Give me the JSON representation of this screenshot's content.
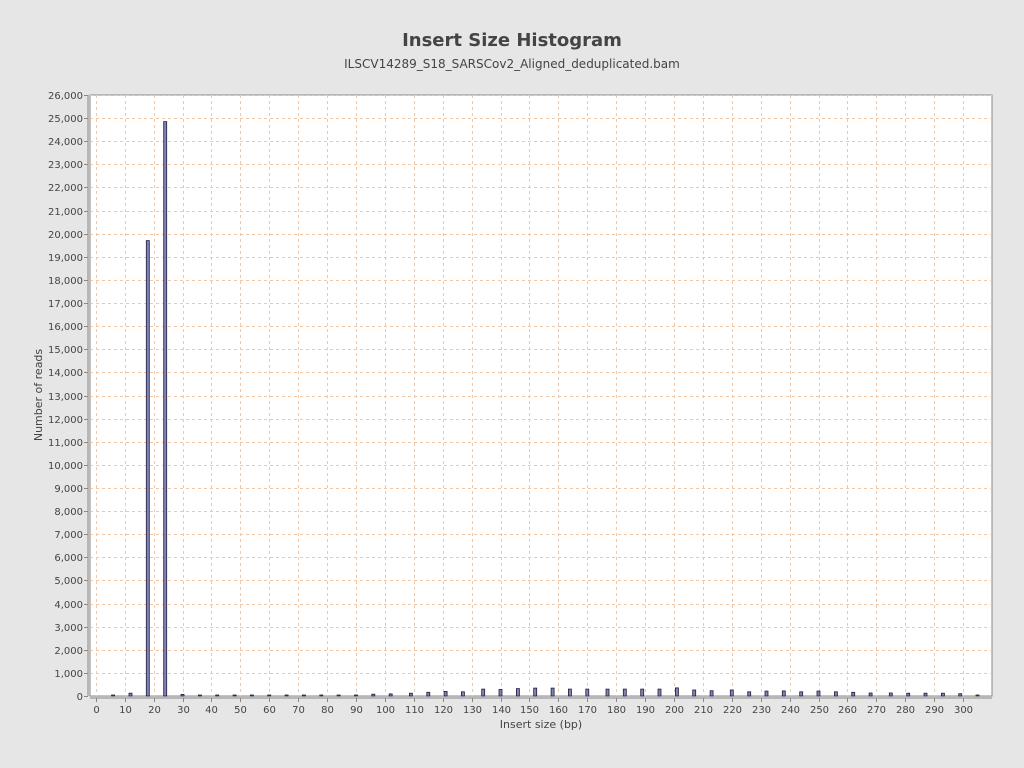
{
  "chart_data": {
    "type": "bar",
    "title": "Insert Size Histogram",
    "subtitle": "ILSCV14289_S18_SARSCov2_Aligned_deduplicated.bam",
    "xlabel": "Insert size (bp)",
    "ylabel": "Number of reads",
    "xlim": [
      -2,
      310
    ],
    "ylim": [
      0,
      26000
    ],
    "x_ticks": [
      0,
      10,
      20,
      30,
      40,
      50,
      60,
      70,
      80,
      90,
      100,
      110,
      120,
      130,
      140,
      150,
      160,
      170,
      180,
      190,
      200,
      210,
      220,
      230,
      240,
      250,
      260,
      270,
      280,
      290,
      300
    ],
    "y_ticks": [
      0,
      1000,
      2000,
      3000,
      4000,
      5000,
      6000,
      7000,
      8000,
      9000,
      10000,
      11000,
      12000,
      13000,
      14000,
      15000,
      16000,
      17000,
      18000,
      19000,
      20000,
      21000,
      22000,
      23000,
      24000,
      25000,
      26000
    ],
    "y_tick_labels": [
      "0",
      "1,000",
      "2,000",
      "3,000",
      "4,000",
      "5,000",
      "6,000",
      "7,000",
      "8,000",
      "9,000",
      "10,000",
      "11,000",
      "12,000",
      "13,000",
      "14,000",
      "15,000",
      "16,000",
      "17,000",
      "18,000",
      "19,000",
      "20,000",
      "21,000",
      "22,000",
      "23,000",
      "24,000",
      "25,000",
      "26,000"
    ],
    "grid": true,
    "legend": "none",
    "colors": {
      "bar_fill": "#8181b8",
      "bar_stroke": "#1e1e3c",
      "grid": "#f0c8a8",
      "plot_bg": "#ffffff",
      "page_bg": "#e6e6e6"
    },
    "series": [
      {
        "x": [
          6,
          12,
          18,
          24,
          30,
          36,
          42,
          48,
          54,
          60,
          66,
          72,
          78,
          84,
          90,
          96,
          102,
          109,
          115,
          121,
          127,
          134,
          140,
          146,
          152,
          158,
          164,
          170,
          177,
          183,
          189,
          195,
          201,
          207,
          213,
          220,
          226,
          232,
          238,
          244,
          250,
          256,
          262,
          268,
          275,
          281,
          287,
          293,
          299,
          305
        ],
        "values": [
          20,
          120,
          19700,
          24850,
          70,
          20,
          20,
          20,
          20,
          20,
          20,
          20,
          20,
          20,
          40,
          80,
          90,
          120,
          160,
          200,
          180,
          300,
          280,
          320,
          340,
          340,
          300,
          300,
          300,
          300,
          300,
          300,
          350,
          260,
          230,
          260,
          180,
          210,
          220,
          180,
          210,
          180,
          160,
          130,
          130,
          120,
          120,
          120,
          100,
          20
        ]
      }
    ]
  }
}
